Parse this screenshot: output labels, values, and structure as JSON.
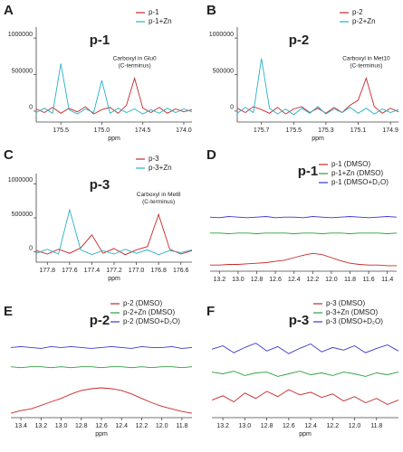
{
  "chart_data": [
    {
      "type": "line",
      "panel_label": "A",
      "title": "p-1",
      "xlabel": "ppm",
      "annotation": [
        "Carboxyl in Glu0",
        "(C-terminus)"
      ],
      "x": [
        175.8,
        175.7,
        175.6,
        175.5,
        175.4,
        175.3,
        175.2,
        175.1,
        175.0,
        174.9,
        174.8,
        174.7,
        174.6,
        174.5,
        174.4,
        174.3,
        174.2,
        174.1,
        174.0,
        173.9
      ],
      "series": [
        {
          "name": "p-1",
          "color": "#c62828",
          "values": [
            30000,
            -20000,
            50000,
            -30000,
            40000,
            -10000,
            60000,
            -40000,
            20000,
            50000,
            -30000,
            80000,
            450000,
            40000,
            -20000,
            50000,
            -30000,
            30000,
            -10000,
            20000
          ]
        },
        {
          "name": "p-1+Zn",
          "color": "#26b0c4",
          "values": [
            -20000,
            40000,
            -30000,
            650000,
            20000,
            -40000,
            30000,
            -20000,
            420000,
            -30000,
            40000,
            -20000,
            30000,
            -40000,
            20000,
            -30000,
            40000,
            -20000,
            30000,
            -10000
          ]
        }
      ],
      "xlim": [
        175.8,
        173.9
      ],
      "xticks": [
        175.5,
        {
          "value": 175,
          "label": "175.0"
        },
        174.5,
        {
          "value": 174,
          "label": "174.0"
        }
      ],
      "ylim": [
        -150000,
        1150000
      ],
      "yticks": [
        0,
        500000,
        1000000
      ],
      "legend": "top-right"
    },
    {
      "type": "line",
      "panel_label": "B",
      "title": "p-2",
      "xlabel": "ppm",
      "annotation": [
        "Carboxyl in Met10",
        "(C-terminus)"
      ],
      "x": [
        175.85,
        175.8,
        175.75,
        175.7,
        175.65,
        175.6,
        175.55,
        175.5,
        175.45,
        175.4,
        175.35,
        175.3,
        175.25,
        175.2,
        175.15,
        175.1,
        175.05,
        175,
        174.95,
        174.9,
        174.85
      ],
      "series": [
        {
          "name": "p-2",
          "color": "#c62828",
          "values": [
            40000,
            -20000,
            60000,
            20000,
            -30000,
            50000,
            -40000,
            30000,
            60000,
            -20000,
            40000,
            -30000,
            50000,
            -20000,
            80000,
            150000,
            450000,
            60000,
            -30000,
            40000,
            -10000
          ]
        },
        {
          "name": "p-2+Zn",
          "color": "#26b0c4",
          "values": [
            -30000,
            50000,
            -20000,
            720000,
            40000,
            -40000,
            30000,
            -50000,
            40000,
            -30000,
            60000,
            -40000,
            30000,
            -20000,
            50000,
            -30000,
            40000,
            -40000,
            30000,
            -20000,
            20000
          ]
        }
      ],
      "xlim": [
        175.85,
        174.85
      ],
      "xticks": [
        175.7,
        175.5,
        175.3,
        175.1,
        174.9
      ],
      "ylim": [
        -150000,
        1150000
      ],
      "yticks": [
        0,
        500000,
        1000000
      ],
      "legend": "top-right"
    },
    {
      "type": "line",
      "panel_label": "C",
      "title": "p-3",
      "xlabel": "ppm",
      "annotation": [
        "Carboxyl in Met8",
        "(C-terminus)"
      ],
      "x": [
        177.9,
        177.8,
        177.7,
        177.6,
        177.5,
        177.4,
        177.3,
        177.2,
        177.1,
        177.0,
        176.9,
        176.8,
        176.7,
        176.6,
        176.5
      ],
      "series": [
        {
          "name": "p-3",
          "color": "#c62828",
          "values": [
            20000,
            -30000,
            40000,
            -20000,
            60000,
            250000,
            -20000,
            50000,
            -40000,
            30000,
            80000,
            550000,
            40000,
            -30000,
            20000
          ]
        },
        {
          "name": "p-3+Zn",
          "color": "#26b0c4",
          "values": [
            -20000,
            40000,
            -30000,
            620000,
            30000,
            -40000,
            20000,
            -30000,
            40000,
            -20000,
            30000,
            -40000,
            20000,
            -10000,
            30000
          ]
        }
      ],
      "xlim": [
        177.9,
        176.5
      ],
      "xticks": [
        177.8,
        177.6,
        177.4,
        177.2,
        {
          "value": 177,
          "label": "177.0"
        },
        176.8,
        176.6
      ],
      "ylim": [
        -150000,
        1150000
      ],
      "yticks": [
        0,
        500000,
        1000000
      ],
      "legend": "top-right"
    },
    {
      "type": "line",
      "panel_label": "D",
      "title": "p-1",
      "x": [
        13.3,
        13.2,
        13.1,
        13.0,
        12.9,
        12.8,
        12.7,
        12.6,
        12.5,
        12.4,
        12.3,
        12.2,
        12.1,
        12.0,
        11.9,
        11.8,
        11.7,
        11.6,
        11.5,
        11.4,
        11.3
      ],
      "series": [
        {
          "name": "p-1 (DMSO)",
          "color": "#c62828",
          "values": [
            10,
            10,
            11,
            11,
            12,
            13,
            14,
            16,
            18,
            22,
            26,
            29,
            27,
            22,
            17,
            13,
            11,
            10,
            10,
            9,
            9
          ]
        },
        {
          "name": "p-1+Zn (DMSO)",
          "color": "#2e9e3e",
          "values": [
            62,
            62,
            61,
            62,
            62,
            61,
            62,
            62,
            62,
            61,
            62,
            62,
            61,
            62,
            62,
            61,
            62,
            62,
            62,
            61,
            62
          ]
        },
        {
          "name": "p-1 (DMSO+D₂O)",
          "color": "#3a3acc",
          "values": [
            88,
            87,
            89,
            88,
            87,
            88,
            89,
            87,
            88,
            88,
            87,
            89,
            88,
            87,
            88,
            89,
            88,
            87,
            88,
            89,
            88
          ]
        }
      ],
      "xlim": [
        13.3,
        11.3
      ],
      "xticks": [
        13.2,
        {
          "value": 13,
          "label": "13.0"
        },
        12.8,
        12.6,
        12.4,
        12.2,
        {
          "value": 12,
          "label": "12.0"
        },
        11.8,
        11.6,
        11.4
      ],
      "ylim": [
        0,
        100
      ],
      "legend": "top-right"
    },
    {
      "type": "line",
      "panel_label": "E",
      "title": "p-2",
      "xlabel": "ppm",
      "x": [
        13.5,
        13.4,
        13.3,
        13.2,
        13.1,
        13.0,
        12.9,
        12.8,
        12.7,
        12.6,
        12.5,
        12.4,
        12.3,
        12.2,
        12.1,
        12.0,
        11.9,
        11.8,
        11.7
      ],
      "series": [
        {
          "name": "p-2 (DMSO)",
          "color": "#c62828",
          "values": [
            5,
            8,
            10,
            14,
            18,
            22,
            27,
            31,
            33,
            34,
            33,
            31,
            27,
            22,
            17,
            13,
            10,
            7,
            5
          ]
        },
        {
          "name": "p-2+Zn (DMSO)",
          "color": "#2e9e3e",
          "values": [
            58,
            57,
            58,
            58,
            57,
            58,
            57,
            58,
            58,
            57,
            58,
            58,
            57,
            58,
            57,
            58,
            58,
            57,
            58
          ]
        },
        {
          "name": "p-2 (DMSO+D₂O)",
          "color": "#3a3acc",
          "values": [
            80,
            81,
            80,
            79,
            81,
            80,
            81,
            80,
            79,
            80,
            81,
            80,
            79,
            81,
            80,
            80,
            81,
            79,
            80
          ]
        }
      ],
      "xlim": [
        13.5,
        11.7
      ],
      "xticks": [
        13.4,
        13.2,
        {
          "value": 13,
          "label": "13.0"
        },
        12.8,
        12.6,
        12.4,
        12.2,
        {
          "value": 12,
          "label": "12.0"
        },
        11.8
      ],
      "ylim": [
        0,
        100
      ],
      "legend": "top-right"
    },
    {
      "type": "line",
      "panel_label": "F",
      "title": "p-3",
      "xlabel": "ppm",
      "x": [
        13.3,
        13.2,
        13.1,
        13.0,
        12.9,
        12.8,
        12.7,
        12.6,
        12.5,
        12.4,
        12.3,
        12.2,
        12.1,
        12.0,
        11.9,
        11.8,
        11.7,
        11.6
      ],
      "series": [
        {
          "name": "p-3 (DMSO)",
          "color": "#c62828",
          "values": [
            20,
            25,
            18,
            28,
            22,
            30,
            24,
            32,
            26,
            29,
            23,
            27,
            19,
            24,
            17,
            22,
            15,
            20
          ]
        },
        {
          "name": "p-3+Zn (DMSO)",
          "color": "#2e9e3e",
          "values": [
            52,
            50,
            53,
            48,
            51,
            52,
            47,
            50,
            53,
            49,
            51,
            48,
            52,
            50,
            47,
            51,
            49,
            52
          ]
        },
        {
          "name": "p-3 (DMSO+D₂O)",
          "color": "#3a3acc",
          "values": [
            78,
            82,
            74,
            80,
            85,
            76,
            81,
            73,
            79,
            84,
            75,
            80,
            77,
            82,
            74,
            79,
            83,
            76
          ]
        }
      ],
      "xlim": [
        13.3,
        11.6
      ],
      "xticks": [
        13.2,
        {
          "value": 13,
          "label": "13.0"
        },
        12.8,
        12.6,
        12.4,
        12.2,
        {
          "value": 12,
          "label": "12.0"
        },
        11.8
      ],
      "ylim": [
        0,
        100
      ],
      "legend": "top-right"
    }
  ]
}
